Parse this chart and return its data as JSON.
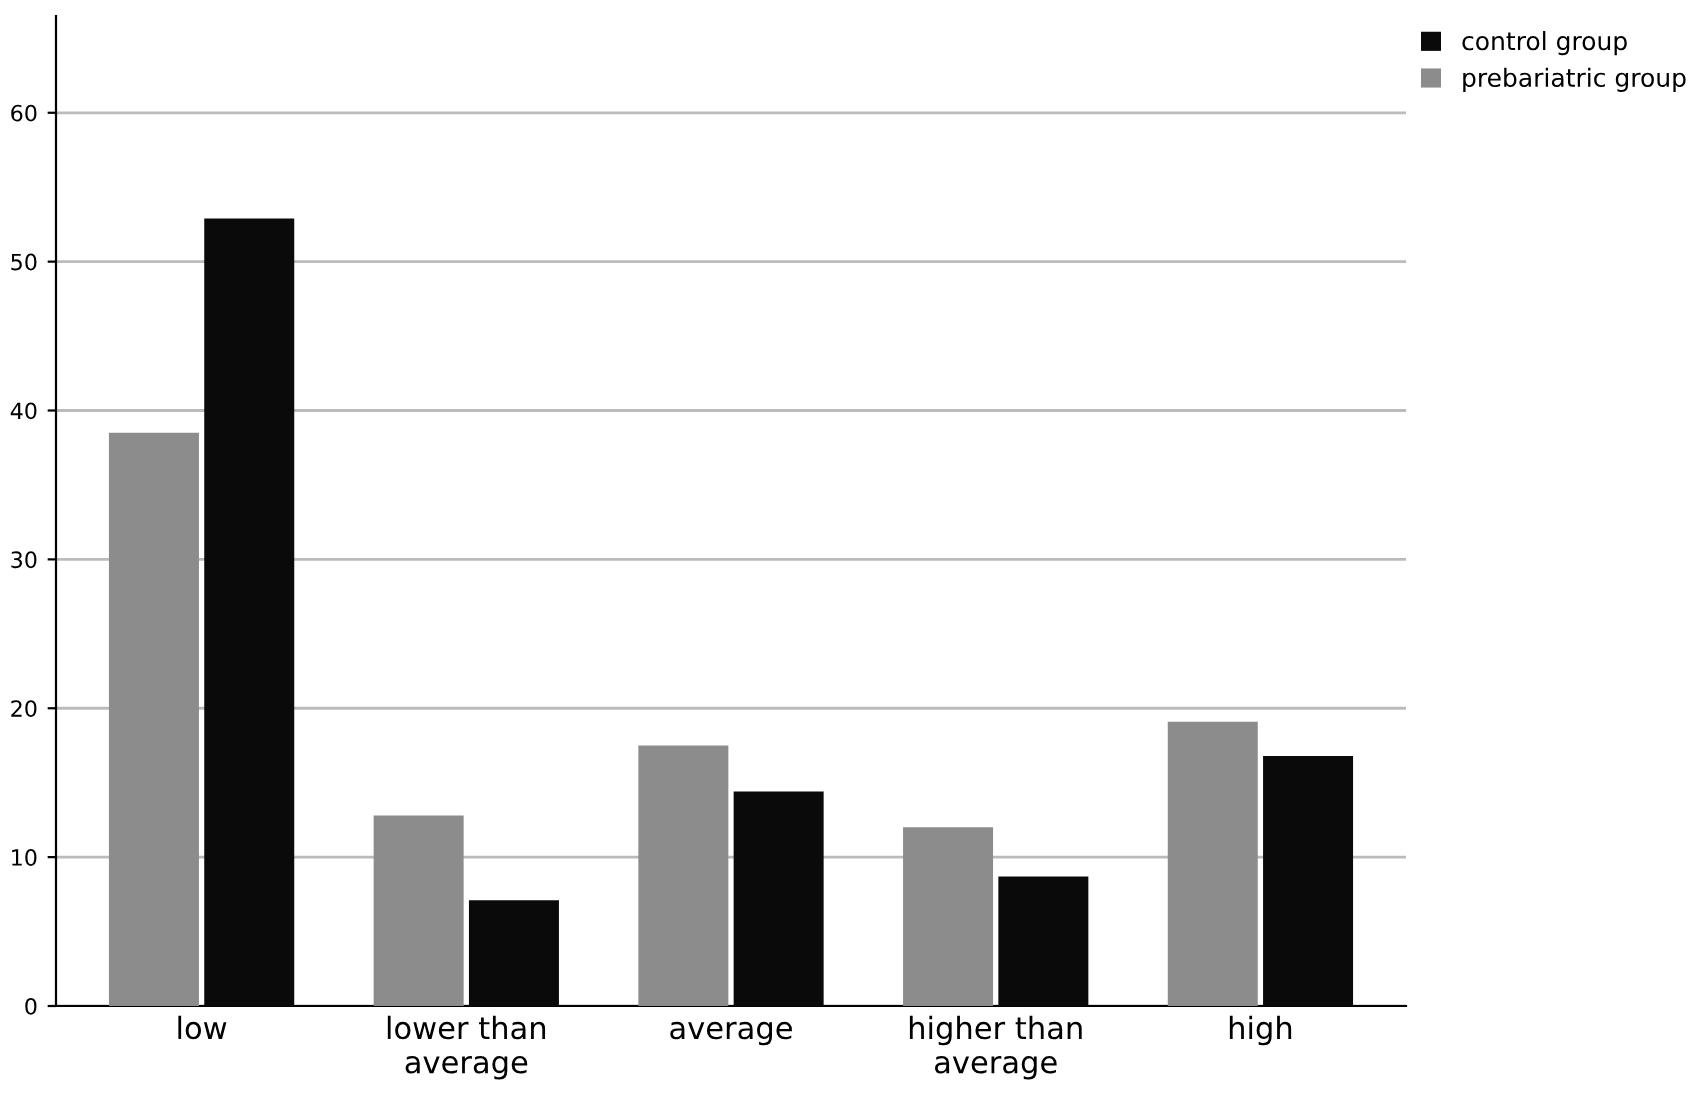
{
  "chart_data": {
    "type": "bar",
    "categories": [
      "low",
      "lower than\naverage",
      "average",
      "higher than\naverage",
      "high"
    ],
    "series": [
      {
        "name": "prebariatric group",
        "color": "#8c8c8c",
        "values": [
          38.5,
          12.8,
          17.5,
          12.0,
          19.1
        ]
      },
      {
        "name": "control group",
        "color": "#0a0a0a",
        "values": [
          52.9,
          7.1,
          14.4,
          8.7,
          16.8
        ]
      }
    ],
    "ylim": [
      0,
      66.5
    ],
    "yticks": [
      0,
      10,
      20,
      30,
      40,
      50,
      60
    ],
    "grid": "y",
    "legend": "top right"
  }
}
